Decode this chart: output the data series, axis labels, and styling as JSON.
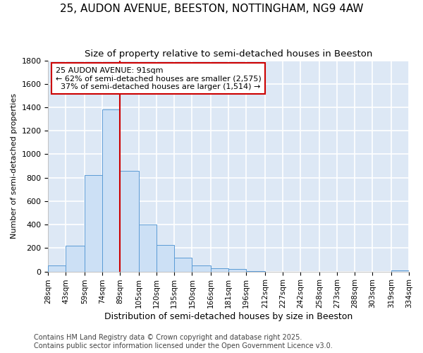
{
  "title": "25, AUDON AVENUE, BEESTON, NOTTINGHAM, NG9 4AW",
  "subtitle": "Size of property relative to semi-detached houses in Beeston",
  "xlabel": "Distribution of semi-detached houses by size in Beeston",
  "ylabel": "Number of semi-detached properties",
  "bins": [
    28,
    43,
    59,
    74,
    89,
    105,
    120,
    135,
    150,
    166,
    181,
    196,
    212,
    227,
    242,
    258,
    273,
    288,
    303,
    319,
    334
  ],
  "counts": [
    50,
    220,
    820,
    1380,
    860,
    400,
    225,
    115,
    50,
    30,
    20,
    5,
    0,
    0,
    0,
    0,
    0,
    0,
    0,
    10
  ],
  "bar_color": "#cce0f5",
  "bar_edge_color": "#5b9bd5",
  "property_line_x": 89,
  "property_line_color": "#cc0000",
  "annotation_text": "25 AUDON AVENUE: 91sqm\n← 62% of semi-detached houses are smaller (2,575)\n  37% of semi-detached houses are larger (1,514) →",
  "annotation_box_color": "#ffffff",
  "annotation_box_edge": "#cc0000",
  "ylim": [
    0,
    1800
  ],
  "yticks": [
    0,
    200,
    400,
    600,
    800,
    1000,
    1200,
    1400,
    1600,
    1800
  ],
  "tick_labels": [
    "28sqm",
    "43sqm",
    "59sqm",
    "74sqm",
    "89sqm",
    "105sqm",
    "120sqm",
    "135sqm",
    "150sqm",
    "166sqm",
    "181sqm",
    "196sqm",
    "212sqm",
    "227sqm",
    "242sqm",
    "258sqm",
    "273sqm",
    "288sqm",
    "303sqm",
    "319sqm",
    "334sqm"
  ],
  "footer": "Contains HM Land Registry data © Crown copyright and database right 2025.\nContains public sector information licensed under the Open Government Licence v3.0.",
  "background_color": "#dde8f5",
  "grid_color": "#ffffff",
  "title_fontsize": 11,
  "subtitle_fontsize": 9.5,
  "xlabel_fontsize": 9,
  "ylabel_fontsize": 8,
  "ytick_fontsize": 8,
  "xtick_fontsize": 7.5,
  "footer_fontsize": 7,
  "annot_fontsize": 8
}
